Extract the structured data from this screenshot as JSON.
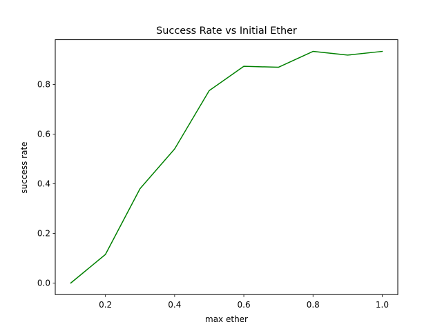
{
  "chart_data": {
    "type": "line",
    "title": "Success Rate vs Initial Ether",
    "xlabel": "max ether",
    "ylabel": "success rate",
    "x": [
      0.1,
      0.2,
      0.3,
      0.4,
      0.5,
      0.6,
      0.7,
      0.8,
      0.9,
      1.0
    ],
    "series": [
      {
        "values": [
          0.0,
          0.115,
          0.38,
          0.54,
          0.775,
          0.873,
          0.869,
          0.933,
          0.918,
          0.933
        ],
        "color": "#008000"
      }
    ],
    "xlim": [
      0.055,
      1.045
    ],
    "ylim": [
      -0.0467,
      0.98
    ],
    "xticks": [
      0.2,
      0.4,
      0.6,
      0.8,
      1.0
    ],
    "xtick_labels": [
      "0.2",
      "0.4",
      "0.6",
      "0.8",
      "1.0"
    ],
    "yticks": [
      0.0,
      0.2,
      0.4,
      0.6,
      0.8
    ],
    "ytick_labels": [
      "0.0",
      "0.2",
      "0.4",
      "0.6",
      "0.8"
    ],
    "grid": false,
    "legend": false
  }
}
